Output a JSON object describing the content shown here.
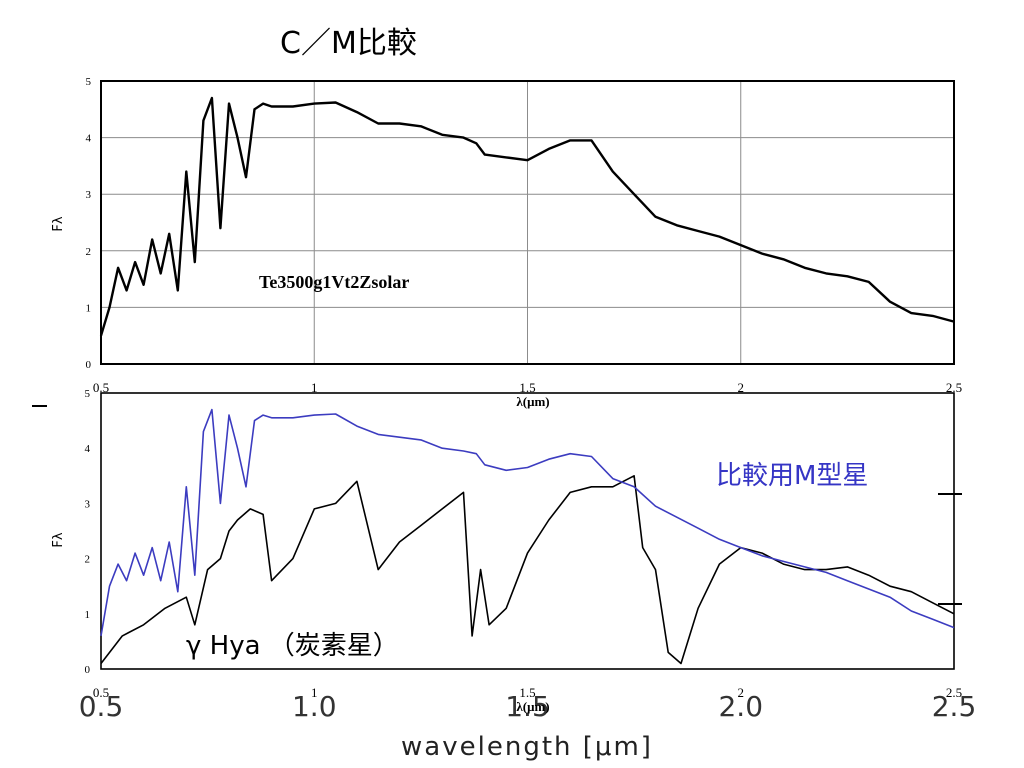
{
  "page_title": "C／M比較",
  "colors": {
    "frame": "#000000",
    "grid": "#8c8c8c",
    "model_line": "#000000",
    "comparison_line": "#3c3cc0",
    "carbon_line": "#000000",
    "comparison_label": "#3535c5"
  },
  "chart_data": [
    {
      "type": "line",
      "title": "",
      "xlabel": "λ(μm)",
      "ylabel": "Fλ",
      "xlim": [
        0.5,
        2.5
      ],
      "ylim": [
        0,
        5
      ],
      "grid": true,
      "x_ticks": [
        "0.5",
        "1",
        "1.5",
        "2",
        "2.5"
      ],
      "y_ticks": [
        "0",
        "1",
        "2",
        "3",
        "4",
        "5"
      ],
      "annotations": [
        "Te3500g1Vt2Zsolar"
      ],
      "series": [
        {
          "name": "Te3500g1Vt2Zsolar",
          "x": [
            0.5,
            0.52,
            0.54,
            0.56,
            0.58,
            0.6,
            0.62,
            0.64,
            0.66,
            0.68,
            0.7,
            0.72,
            0.74,
            0.76,
            0.78,
            0.8,
            0.82,
            0.84,
            0.86,
            0.88,
            0.9,
            0.95,
            1.0,
            1.05,
            1.1,
            1.15,
            1.2,
            1.25,
            1.3,
            1.35,
            1.38,
            1.4,
            1.45,
            1.5,
            1.55,
            1.6,
            1.65,
            1.7,
            1.75,
            1.8,
            1.85,
            1.9,
            1.95,
            2.0,
            2.05,
            2.1,
            2.15,
            2.2,
            2.25,
            2.3,
            2.35,
            2.4,
            2.45,
            2.5
          ],
          "y": [
            0.5,
            1.0,
            1.7,
            1.3,
            1.8,
            1.4,
            2.2,
            1.6,
            2.3,
            1.3,
            3.4,
            1.8,
            4.3,
            4.7,
            2.4,
            4.6,
            4.0,
            3.3,
            4.5,
            4.6,
            4.55,
            4.55,
            4.6,
            4.62,
            4.45,
            4.25,
            4.25,
            4.2,
            4.05,
            4.0,
            3.9,
            3.7,
            3.65,
            3.6,
            3.8,
            3.95,
            3.95,
            3.4,
            3.0,
            2.6,
            2.45,
            2.35,
            2.25,
            2.1,
            1.95,
            1.85,
            1.7,
            1.6,
            1.55,
            1.45,
            1.1,
            0.9,
            0.85,
            0.75
          ]
        }
      ]
    },
    {
      "type": "line",
      "title": "",
      "xlabel": "λ(μm)",
      "ylabel": "Fλ",
      "xlim": [
        0.5,
        2.5
      ],
      "ylim": [
        0,
        5
      ],
      "grid": false,
      "x_ticks": [
        "0.5",
        "1.0",
        "1.5",
        "2.0",
        "2.5"
      ],
      "x_ticks_small": [
        "0.5",
        "1",
        "1.5",
        "2",
        "2.5"
      ],
      "y_ticks": [
        "0",
        "1",
        "2",
        "3",
        "4",
        "5"
      ],
      "axis_caption": "wavelength [μm]",
      "annotations": [
        "比較用M型星",
        "γ Hya （炭素星）"
      ],
      "series": [
        {
          "name": "比較用M型星",
          "x": [
            0.5,
            0.52,
            0.54,
            0.56,
            0.58,
            0.6,
            0.62,
            0.64,
            0.66,
            0.68,
            0.7,
            0.72,
            0.74,
            0.76,
            0.78,
            0.8,
            0.82,
            0.84,
            0.86,
            0.88,
            0.9,
            0.95,
            1.0,
            1.05,
            1.1,
            1.15,
            1.2,
            1.25,
            1.3,
            1.35,
            1.38,
            1.4,
            1.45,
            1.5,
            1.55,
            1.6,
            1.65,
            1.7,
            1.75,
            1.8,
            1.85,
            1.9,
            1.95,
            2.0,
            2.05,
            2.1,
            2.15,
            2.2,
            2.25,
            2.3,
            2.35,
            2.4,
            2.45,
            2.5
          ],
          "y": [
            0.6,
            1.5,
            1.9,
            1.6,
            2.1,
            1.7,
            2.2,
            1.6,
            2.3,
            1.4,
            3.3,
            1.7,
            4.3,
            4.7,
            3.0,
            4.6,
            4.0,
            3.3,
            4.5,
            4.6,
            4.55,
            4.55,
            4.6,
            4.62,
            4.4,
            4.25,
            4.2,
            4.15,
            4.0,
            3.95,
            3.9,
            3.7,
            3.6,
            3.65,
            3.8,
            3.9,
            3.85,
            3.45,
            3.3,
            2.95,
            2.75,
            2.55,
            2.35,
            2.2,
            2.05,
            1.95,
            1.85,
            1.75,
            1.6,
            1.45,
            1.3,
            1.05,
            0.9,
            0.75
          ]
        },
        {
          "name": "γ Hya （炭素星）",
          "x": [
            0.5,
            0.55,
            0.6,
            0.65,
            0.7,
            0.72,
            0.75,
            0.78,
            0.8,
            0.82,
            0.85,
            0.88,
            0.9,
            0.95,
            1.0,
            1.05,
            1.1,
            1.15,
            1.2,
            1.25,
            1.3,
            1.35,
            1.37,
            1.39,
            1.41,
            1.45,
            1.5,
            1.55,
            1.6,
            1.65,
            1.7,
            1.75,
            1.77,
            1.8,
            1.83,
            1.86,
            1.9,
            1.95,
            2.0,
            2.05,
            2.1,
            2.15,
            2.2,
            2.25,
            2.3,
            2.35,
            2.4,
            2.45,
            2.5
          ],
          "y": [
            0.1,
            0.6,
            0.8,
            1.1,
            1.3,
            0.8,
            1.8,
            2.0,
            2.5,
            2.7,
            2.9,
            2.8,
            1.6,
            2.0,
            2.9,
            3.0,
            3.4,
            1.8,
            2.3,
            2.6,
            2.9,
            3.2,
            0.6,
            1.8,
            0.8,
            1.1,
            2.1,
            2.7,
            3.2,
            3.3,
            3.3,
            3.5,
            2.2,
            1.8,
            0.3,
            0.1,
            1.1,
            1.9,
            2.2,
            2.1,
            1.9,
            1.8,
            1.8,
            1.85,
            1.7,
            1.5,
            1.4,
            1.2,
            1.0
          ]
        }
      ]
    }
  ]
}
